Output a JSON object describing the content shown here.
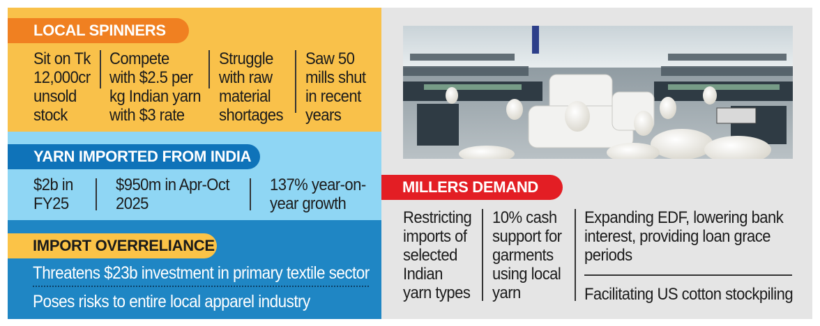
{
  "local_spinners": {
    "title": "LOCAL SPINNERS",
    "items": [
      [
        "Sit on Tk",
        "12,000cr",
        "unsold",
        "stock"
      ],
      [
        "Compete",
        "with $2.5 per",
        "kg Indian yarn",
        "with $3 rate"
      ],
      [
        "Struggle",
        "with raw",
        "material",
        "shortages"
      ],
      [
        "Saw 50",
        "mills shut",
        "in recent",
        "years"
      ]
    ]
  },
  "yarn_imported": {
    "title": "YARN IMPORTED FROM INDIA",
    "items": [
      [
        "$2b in",
        "FY25"
      ],
      [
        "$950m in Apr-Oct",
        "2025"
      ],
      [
        "137% year-on-",
        "year growth"
      ]
    ]
  },
  "import_overreliance": {
    "title": "IMPORT OVERRELIANCE",
    "items": [
      "Threatens $23b investment in primary textile sector",
      "Poses risks to entire local apparel industry"
    ]
  },
  "millers_demand": {
    "title": "MILLERS DEMAND",
    "items": [
      [
        "Restricting",
        "imports of",
        "selected",
        "Indian",
        "yarn types"
      ],
      [
        "10% cash",
        "support for",
        "garments",
        "using local",
        "yarn"
      ],
      [
        "Expanding EDF, lowering bank",
        "interest, providing loan grace",
        "periods"
      ],
      [
        "Facilitating US cotton stockpiling"
      ]
    ]
  },
  "photo": {
    "subject": "spinning-mill-floor"
  },
  "colors": {
    "spinners_bg": "#f9c14a",
    "spinners_tag": "#f08021",
    "yarn_bg": "#8fd6f4",
    "yarn_tag": "#0f73b9",
    "over_bg": "#1f86c4",
    "over_tag": "#fbc347",
    "millers_tag": "#e31e24",
    "right_bg": "#e5e5e5"
  }
}
